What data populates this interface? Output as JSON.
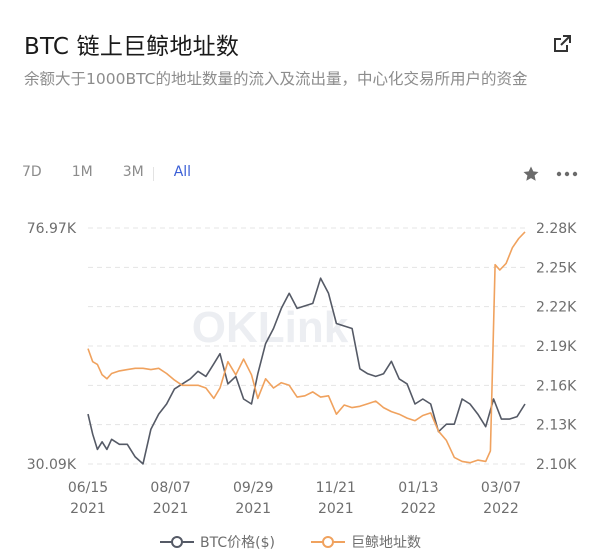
{
  "header": {
    "title": "BTC 链上巨鲸地址数",
    "subtitle": "余额大于1000BTC的地址数量的流入及流出量，中心化交易所用户的资金"
  },
  "range_tabs": [
    {
      "label": "7D",
      "active": false
    },
    {
      "label": "1M",
      "active": false
    },
    {
      "label": "3M",
      "active": false
    },
    {
      "label": "All",
      "active": true
    }
  ],
  "icons": {
    "external": "external-link-icon",
    "star": "star-icon",
    "more": "more-icon"
  },
  "watermark": "OKLink",
  "colors": {
    "btc": "#555a66",
    "whale": "#f0a25e",
    "active_tab": "#3b5fd6"
  },
  "chart_data": {
    "type": "line",
    "title": "",
    "x_ticks": [
      "06/15\n2021",
      "08/07\n2021",
      "09/29\n2021",
      "11/21\n2021",
      "01/13\n2022",
      "03/07\n2022"
    ],
    "x_range": [
      "2021-06-15",
      "2022-03-20"
    ],
    "y_left": {
      "label": "",
      "min": 30090,
      "max": 76970,
      "tick_labels": [
        "76.97K",
        "30.09K"
      ]
    },
    "y_right": {
      "label": "",
      "min": 2100,
      "max": 2280,
      "tick_labels": [
        "2.28K",
        "2.25K",
        "2.22K",
        "2.19K",
        "2.16K",
        "2.13K",
        "2.10K"
      ],
      "tick_values": [
        2280,
        2250,
        2220,
        2190,
        2160,
        2130,
        2100
      ]
    },
    "grid": true,
    "legend_position": "bottom",
    "series": [
      {
        "name": "BTC价格($)",
        "axis": "left",
        "x": [
          "2021-06-15",
          "2021-06-18",
          "2021-06-21",
          "2021-06-24",
          "2021-06-27",
          "2021-06-30",
          "2021-07-05",
          "2021-07-10",
          "2021-07-15",
          "2021-07-20",
          "2021-07-25",
          "2021-07-30",
          "2021-08-04",
          "2021-08-09",
          "2021-08-14",
          "2021-08-19",
          "2021-08-24",
          "2021-08-29",
          "2021-09-03",
          "2021-09-07",
          "2021-09-12",
          "2021-09-17",
          "2021-09-22",
          "2021-09-27",
          "2021-10-01",
          "2021-10-06",
          "2021-10-11",
          "2021-10-16",
          "2021-10-21",
          "2021-10-26",
          "2021-10-31",
          "2021-11-05",
          "2021-11-10",
          "2021-11-15",
          "2021-11-20",
          "2021-11-25",
          "2021-11-30",
          "2021-12-05",
          "2021-12-10",
          "2021-12-15",
          "2021-12-20",
          "2021-12-25",
          "2021-12-30",
          "2022-01-04",
          "2022-01-09",
          "2022-01-14",
          "2022-01-19",
          "2022-01-24",
          "2022-01-29",
          "2022-02-03",
          "2022-02-08",
          "2022-02-13",
          "2022-02-18",
          "2022-02-23",
          "2022-02-28",
          "2022-03-05",
          "2022-03-10",
          "2022-03-15",
          "2022-03-20"
        ],
        "values": [
          40000,
          36000,
          33000,
          34500,
          33000,
          35000,
          34000,
          34000,
          31500,
          30100,
          37000,
          40000,
          42000,
          45000,
          46000,
          47000,
          48500,
          47500,
          50000,
          52000,
          46000,
          47500,
          43000,
          42000,
          48000,
          54000,
          57000,
          61000,
          64000,
          61000,
          61500,
          62000,
          67000,
          64000,
          58000,
          57500,
          57000,
          49000,
          48000,
          47500,
          48000,
          50500,
          47000,
          46000,
          42000,
          43000,
          42000,
          36500,
          38000,
          38000,
          43000,
          42000,
          40000,
          37500,
          43000,
          39000,
          39000,
          39500,
          42000
        ]
      },
      {
        "name": "巨鲸地址数",
        "axis": "right",
        "x": [
          "2021-06-15",
          "2021-06-18",
          "2021-06-21",
          "2021-06-24",
          "2021-06-27",
          "2021-06-30",
          "2021-07-05",
          "2021-07-10",
          "2021-07-15",
          "2021-07-20",
          "2021-07-25",
          "2021-07-30",
          "2021-08-04",
          "2021-08-09",
          "2021-08-14",
          "2021-08-19",
          "2021-08-24",
          "2021-08-29",
          "2021-09-03",
          "2021-09-07",
          "2021-09-12",
          "2021-09-17",
          "2021-09-22",
          "2021-09-27",
          "2021-10-01",
          "2021-10-06",
          "2021-10-11",
          "2021-10-16",
          "2021-10-21",
          "2021-10-26",
          "2021-10-31",
          "2021-11-05",
          "2021-11-10",
          "2021-11-15",
          "2021-11-20",
          "2021-11-25",
          "2021-11-30",
          "2021-12-05",
          "2021-12-10",
          "2021-12-15",
          "2021-12-20",
          "2021-12-25",
          "2021-12-30",
          "2022-01-04",
          "2022-01-09",
          "2022-01-14",
          "2022-01-19",
          "2022-01-24",
          "2022-01-29",
          "2022-02-03",
          "2022-02-08",
          "2022-02-13",
          "2022-02-18",
          "2022-02-23",
          "2022-02-26",
          "2022-03-01",
          "2022-03-04",
          "2022-03-08",
          "2022-03-12",
          "2022-03-16",
          "2022-03-20"
        ],
        "values": [
          2188,
          2178,
          2176,
          2168,
          2165,
          2169,
          2171,
          2172,
          2173,
          2173,
          2172,
          2173,
          2169,
          2164,
          2160,
          2160,
          2160,
          2158,
          2150,
          2158,
          2178,
          2168,
          2180,
          2168,
          2150,
          2165,
          2158,
          2162,
          2160,
          2151,
          2152,
          2155,
          2151,
          2152,
          2138,
          2145,
          2143,
          2144,
          2146,
          2148,
          2143,
          2140,
          2138,
          2135,
          2133,
          2137,
          2139,
          2125,
          2118,
          2105,
          2102,
          2101,
          2103,
          2102,
          2110,
          2252,
          2248,
          2253,
          2265,
          2272,
          2277
        ]
      }
    ]
  }
}
